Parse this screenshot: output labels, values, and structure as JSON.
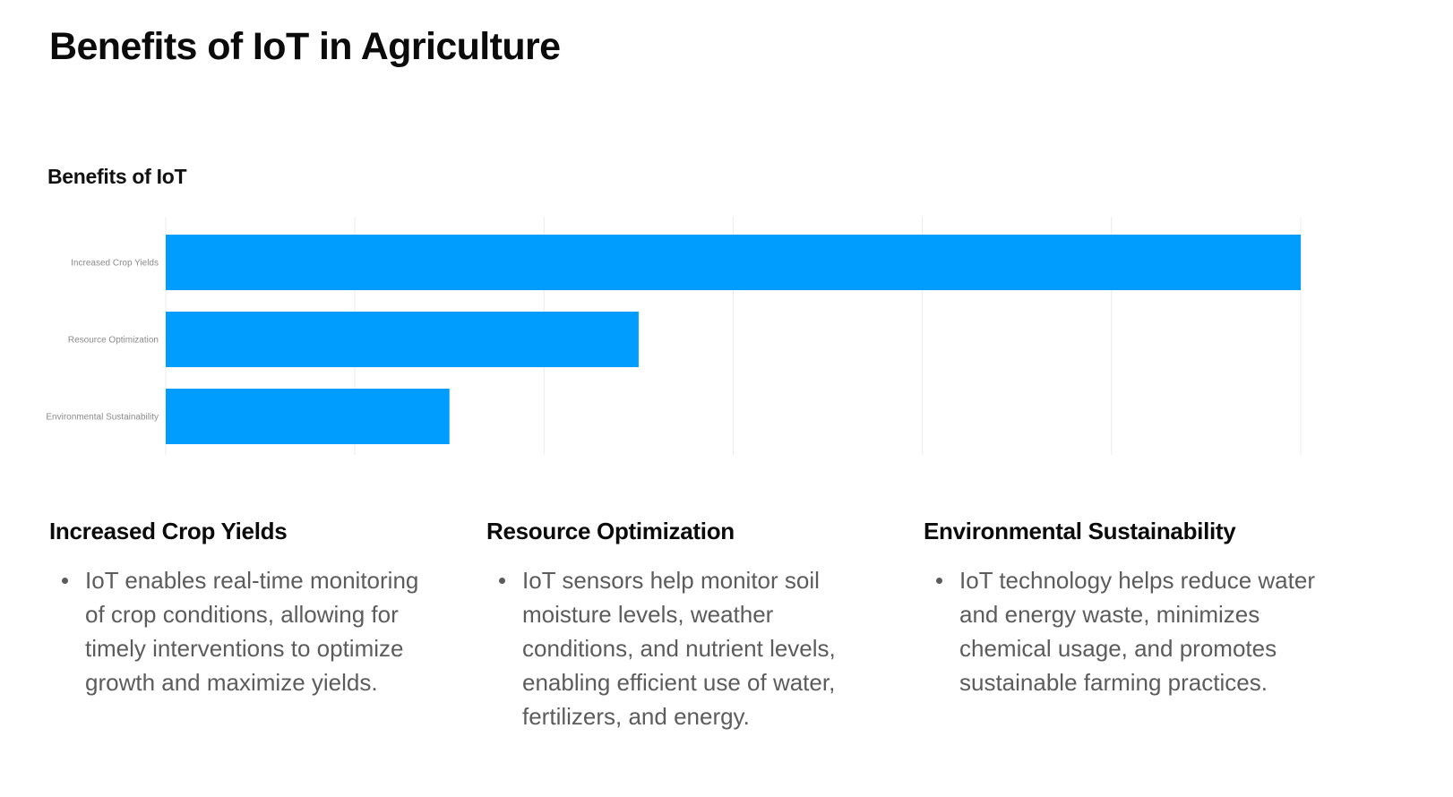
{
  "page": {
    "title": "Benefits of IoT in Agriculture"
  },
  "chart_data": {
    "type": "bar",
    "orientation": "horizontal",
    "title": "Benefits of IoT",
    "categories": [
      "Increased Crop Yields",
      "Resource Optimization",
      "Environmental Sustainability"
    ],
    "values": [
      60,
      25,
      15
    ],
    "xlim": [
      0,
      60
    ],
    "xticks": [
      0,
      10,
      20,
      30,
      40,
      50,
      60
    ],
    "xlabel": "",
    "ylabel": "",
    "grid": "vertical",
    "legend": "none",
    "bar_color": "#009dff"
  },
  "columns": [
    {
      "heading": "Increased Crop Yields",
      "text": "IoT enables real-time monitoring of crop conditions, allowing for timely interventions to optimize growth and maximize yields."
    },
    {
      "heading": "Resource Optimization",
      "text": "IoT sensors help monitor soil moisture levels, weather conditions, and nutrient levels, enabling efficient use of water, fertilizers, and energy."
    },
    {
      "heading": "Environmental Sustainability",
      "text": "IoT technology helps reduce water and energy waste, minimizes chemical usage, and promotes sustainable farming practices."
    }
  ]
}
